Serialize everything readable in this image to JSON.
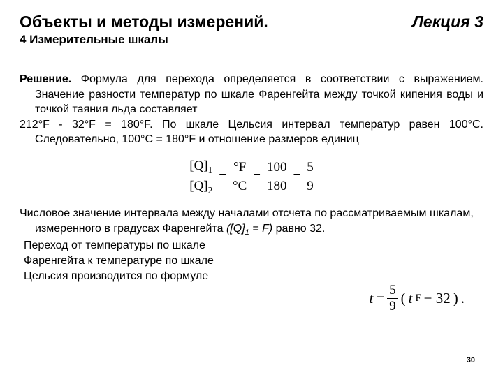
{
  "header": {
    "title": "Объекты и методы измерений.",
    "lecture": "Лекция 3",
    "subtitle": "4 Измерительные шкалы"
  },
  "p1": {
    "lead": "Решение.",
    "rest1": "  Формула для перехода определяется в соответствии с выражением. Значение разности температур по шкале Фаренгейта между точкой кипения воды и точкой таяния льда составляет",
    "line2": "212°F - 32°F = 180°F. По шкале Цельсия интервал температур равен 100°С. Следовательно, 100°С = 180°F и отношение размеров единиц"
  },
  "formula1": {
    "q1": "[Q]",
    "sub1": "1",
    "q2": "[Q]",
    "sub2": "2",
    "eq": "=",
    "degF": "°F",
    "degC": "°C",
    "n100": "100",
    "n180": "180",
    "n5": "5",
    "n9": "9"
  },
  "p2": {
    "l1": "Числовое значение интервала между началами отсчета по рассматриваемым шкалам, измеренного в градусах Фаренгейта ",
    "l1i": "([Q]",
    "l1sub": "1",
    "l1end": " = F)",
    "l1tail": " равно 32.",
    "l2": "Переход от температуры по шкале",
    "l3": "Фаренгейта к температуре по шкале",
    "l4": "Цельсия производится по формуле"
  },
  "formula2": {
    "t": "t",
    "eq": "=",
    "n5": "5",
    "n9": "9",
    "lp": "(",
    "tF": "t",
    "Fsub": "F",
    "m32": " − 32",
    "rp": ")",
    "dot": "."
  },
  "pageNum": "30"
}
